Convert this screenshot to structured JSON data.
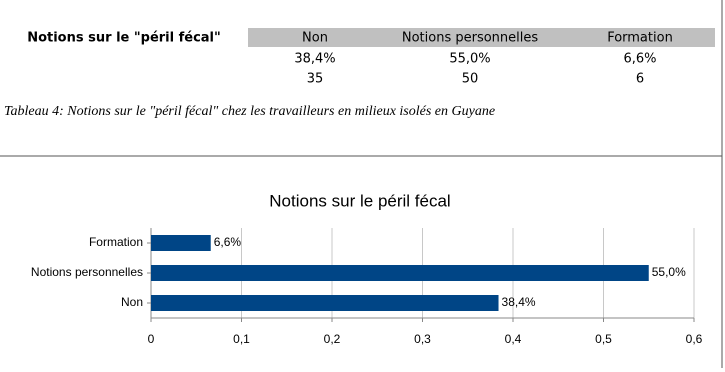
{
  "table": {
    "header": [
      "Notions sur le \"péril fécal\"",
      "Non",
      "Notions personnelles",
      "Formation"
    ],
    "rows": [
      [
        "38,4%",
        "55,0%",
        "6,6%"
      ],
      [
        "35",
        "50",
        "6"
      ]
    ]
  },
  "caption": "Tableau 4: Notions sur le \"péril fécal\" chez les travailleurs en milieux isolés en Guyane",
  "chart_data": {
    "type": "bar",
    "orientation": "horizontal",
    "title": "Notions sur le péril fécal",
    "categories": [
      "Non",
      "Notions personnelles",
      "Formation"
    ],
    "values": [
      0.384,
      0.55,
      0.066
    ],
    "value_labels": [
      "38,4%",
      "55,0%",
      "6,6%"
    ],
    "color": "#004586",
    "xlim": [
      0,
      0.6
    ],
    "xticks": [
      0,
      {
        "value": 0.1,
        "label": "0,1"
      },
      {
        "value": 0.2,
        "label": "0,2"
      },
      {
        "value": 0.3,
        "label": "0,3"
      },
      {
        "value": 0.4,
        "label": "0,4"
      },
      {
        "value": 0.5,
        "label": "0,5"
      },
      {
        "value": 0.6,
        "label": "0,6"
      }
    ],
    "grid": true
  }
}
